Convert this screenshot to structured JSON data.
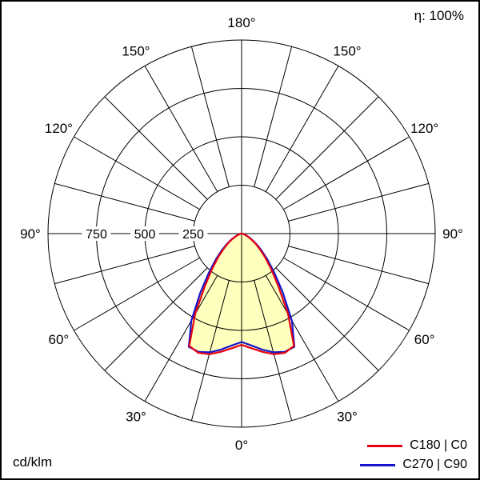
{
  "chart_data": {
    "type": "polar",
    "unit": "cd/klm",
    "efficiency": "η: 100%",
    "angle_tick_labels_deg": [
      0,
      30,
      60,
      90,
      120,
      150,
      180
    ],
    "radial_tick_labels": [
      250,
      500,
      750
    ],
    "radial_max": 1000,
    "grid_spoke_step_deg": 15,
    "gamma_deg": [
      0,
      5,
      10,
      15,
      20,
      25,
      30,
      35,
      40,
      45,
      50,
      55,
      60,
      65,
      70,
      75,
      80,
      85,
      90
    ],
    "symmetric_about_nadir": true,
    "fill_color": "#ffffbe",
    "legend_position": "bottom-right",
    "series": [
      {
        "name": "C180 | C0",
        "color": "#e60012",
        "values_cd_per_klm": [
          575,
          595,
          620,
          645,
          655,
          640,
          480,
          330,
          235,
          170,
          120,
          85,
          55,
          35,
          20,
          12,
          7,
          4,
          2
        ]
      },
      {
        "name": "C270 | C90",
        "color": "#1414cc",
        "values_cd_per_klm": [
          560,
          580,
          608,
          635,
          650,
          645,
          520,
          370,
          262,
          188,
          132,
          92,
          60,
          38,
          22,
          13,
          8,
          4,
          2
        ]
      }
    ]
  }
}
